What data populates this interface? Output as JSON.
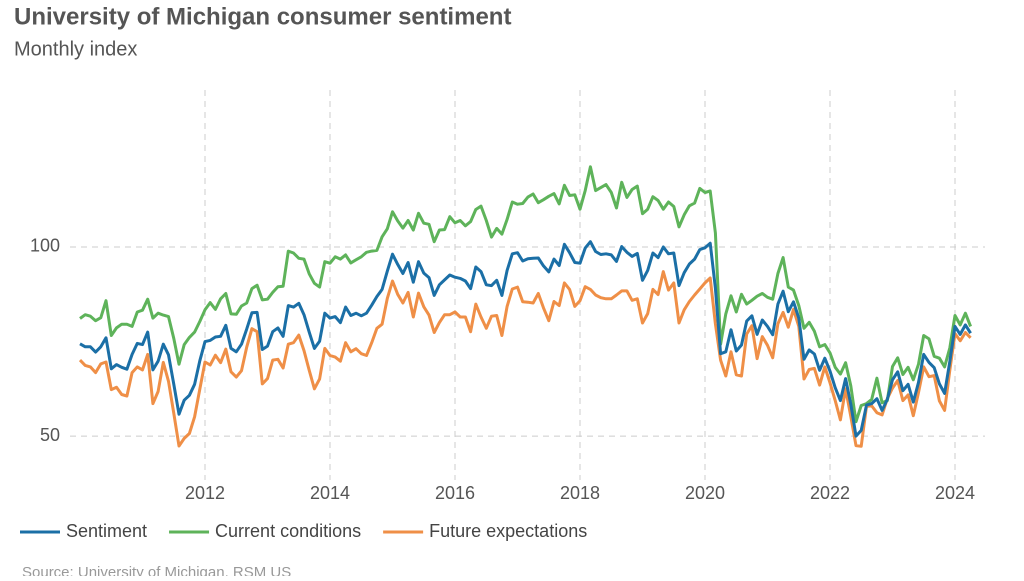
{
  "chart_data": {
    "type": "line",
    "title": "University of Michigan consumer sentiment",
    "subtitle": "Monthly index",
    "source": "Source: University of Michigan, RSM US",
    "xlim": [
      2009.84,
      2024.48
    ],
    "xticks": [
      2012,
      2014,
      2016,
      2018,
      2020,
      2022,
      2024
    ],
    "ylim": [
      38.4,
      141.5
    ],
    "yticks": [
      50,
      100
    ],
    "grid": true,
    "legend": "bottom",
    "x": [
      "2010-01",
      "2010-02",
      "2010-03",
      "2010-04",
      "2010-05",
      "2010-06",
      "2010-07",
      "2010-08",
      "2010-09",
      "2010-10",
      "2010-11",
      "2010-12",
      "2011-01",
      "2011-02",
      "2011-03",
      "2011-04",
      "2011-05",
      "2011-06",
      "2011-07",
      "2011-08",
      "2011-09",
      "2011-10",
      "2011-11",
      "2011-12",
      "2012-01",
      "2012-02",
      "2012-03",
      "2012-04",
      "2012-05",
      "2012-06",
      "2012-07",
      "2012-08",
      "2012-09",
      "2012-10",
      "2012-11",
      "2012-12",
      "2013-01",
      "2013-02",
      "2013-03",
      "2013-04",
      "2013-05",
      "2013-06",
      "2013-07",
      "2013-08",
      "2013-09",
      "2013-10",
      "2013-11",
      "2013-12",
      "2014-01",
      "2014-02",
      "2014-03",
      "2014-04",
      "2014-05",
      "2014-06",
      "2014-07",
      "2014-08",
      "2014-09",
      "2014-10",
      "2014-11",
      "2014-12",
      "2015-01",
      "2015-02",
      "2015-03",
      "2015-04",
      "2015-05",
      "2015-06",
      "2015-07",
      "2015-08",
      "2015-09",
      "2015-10",
      "2015-11",
      "2015-12",
      "2016-01",
      "2016-02",
      "2016-03",
      "2016-04",
      "2016-05",
      "2016-06",
      "2016-07",
      "2016-08",
      "2016-09",
      "2016-10",
      "2016-11",
      "2016-12",
      "2017-01",
      "2017-02",
      "2017-03",
      "2017-04",
      "2017-05",
      "2017-06",
      "2017-07",
      "2017-08",
      "2017-09",
      "2017-10",
      "2017-11",
      "2017-12",
      "2018-01",
      "2018-02",
      "2018-03",
      "2018-04",
      "2018-05",
      "2018-06",
      "2018-07",
      "2018-08",
      "2018-09",
      "2018-10",
      "2018-11",
      "2018-12",
      "2019-01",
      "2019-02",
      "2019-03",
      "2019-04",
      "2019-05",
      "2019-06",
      "2019-07",
      "2019-08",
      "2019-09",
      "2019-10",
      "2019-11",
      "2019-12",
      "2020-01",
      "2020-02",
      "2020-03",
      "2020-04",
      "2020-05",
      "2020-06",
      "2020-07",
      "2020-08",
      "2020-09",
      "2020-10",
      "2020-11",
      "2020-12",
      "2021-01",
      "2021-02",
      "2021-03",
      "2021-04",
      "2021-05",
      "2021-06",
      "2021-07",
      "2021-08",
      "2021-09",
      "2021-10",
      "2021-11",
      "2021-12",
      "2022-01",
      "2022-02",
      "2022-03",
      "2022-04",
      "2022-05",
      "2022-06",
      "2022-07",
      "2022-08",
      "2022-09",
      "2022-10",
      "2022-11",
      "2022-12",
      "2023-01",
      "2023-02",
      "2023-03",
      "2023-04",
      "2023-05",
      "2023-06",
      "2023-07",
      "2023-08",
      "2023-09",
      "2023-10",
      "2023-11",
      "2023-12",
      "2024-01",
      "2024-02",
      "2024-03",
      "2024-04"
    ],
    "series": [
      {
        "name": "Sentiment",
        "color": "#1b6fa6",
        "values": [
          74.4,
          73.6,
          73.6,
          72.2,
          73.6,
          76.0,
          67.8,
          68.9,
          68.2,
          67.7,
          71.6,
          74.5,
          74.2,
          77.5,
          67.5,
          69.8,
          74.3,
          71.5,
          63.7,
          55.8,
          59.5,
          60.8,
          63.7,
          69.9,
          75.0,
          75.3,
          76.2,
          76.4,
          79.3,
          73.2,
          72.3,
          74.3,
          78.3,
          82.6,
          82.7,
          72.9,
          73.8,
          77.6,
          78.6,
          76.4,
          84.5,
          84.1,
          85.1,
          82.1,
          77.5,
          73.2,
          75.1,
          82.5,
          81.2,
          81.6,
          80.0,
          84.1,
          81.9,
          82.5,
          81.8,
          82.5,
          84.6,
          86.9,
          88.8,
          93.6,
          98.1,
          95.4,
          93.0,
          95.9,
          90.7,
          96.1,
          93.1,
          91.9,
          87.2,
          90.0,
          91.3,
          92.6,
          92.0,
          91.7,
          91.0,
          89.0,
          94.7,
          93.5,
          90.0,
          89.8,
          91.2,
          87.2,
          93.8,
          98.2,
          98.5,
          96.3,
          96.9,
          97.0,
          97.1,
          95.0,
          93.4,
          96.8,
          95.1,
          100.7,
          98.5,
          95.9,
          95.7,
          99.7,
          101.4,
          98.8,
          98.0,
          98.2,
          97.9,
          96.2,
          100.1,
          98.6,
          97.5,
          98.3,
          91.2,
          93.8,
          98.4,
          97.2,
          100.0,
          98.2,
          98.4,
          89.8,
          93.2,
          95.5,
          96.8,
          99.3,
          99.8,
          101.0,
          89.1,
          71.8,
          72.3,
          78.1,
          72.5,
          74.1,
          80.4,
          81.8,
          76.9,
          80.7,
          79.0,
          76.8,
          84.9,
          88.3,
          82.9,
          85.5,
          81.2,
          70.3,
          72.8,
          71.7,
          67.4,
          70.6,
          67.2,
          62.8,
          59.4,
          65.2,
          58.4,
          50.0,
          51.5,
          58.2,
          58.6,
          59.9,
          56.8,
          59.7,
          64.9,
          67.0,
          62.0,
          63.7,
          59.0,
          64.2,
          71.6,
          69.5,
          68.1,
          63.8,
          61.3,
          69.7,
          79.0,
          76.9,
          79.4,
          77.2
        ]
      },
      {
        "name": "Current conditions",
        "color": "#5eb35a",
        "values": [
          81.1,
          82.1,
          81.7,
          80.5,
          81.3,
          85.8,
          76.6,
          78.6,
          79.6,
          79.6,
          79.0,
          82.8,
          83.3,
          86.2,
          81.2,
          82.5,
          82.0,
          81.6,
          75.8,
          69.0,
          74.2,
          76.1,
          77.5,
          80.3,
          83.4,
          85.3,
          83.5,
          86.3,
          87.7,
          82.3,
          82.2,
          84.4,
          85.2,
          89.0,
          89.9,
          86.0,
          86.2,
          88.0,
          89.5,
          89.6,
          98.9,
          98.4,
          97.0,
          96.8,
          92.9,
          90.4,
          89.4,
          96.1,
          95.7,
          97.4,
          96.8,
          97.9,
          95.8,
          96.6,
          97.4,
          98.6,
          98.9,
          99.1,
          102.7,
          104.8,
          109.3,
          106.9,
          105.0,
          107.0,
          104.5,
          108.9,
          106.3,
          106.0,
          101.4,
          104.5,
          104.6,
          108.0,
          106.4,
          107.0,
          105.6,
          106.7,
          109.9,
          110.8,
          107.0,
          102.6,
          104.9,
          103.4,
          107.3,
          111.9,
          111.3,
          111.5,
          113.2,
          114.0,
          111.7,
          112.5,
          113.4,
          114.1,
          111.4,
          116.3,
          113.6,
          113.8,
          110.0,
          114.9,
          121.2,
          114.9,
          115.7,
          116.5,
          114.4,
          110.3,
          117.1,
          113.1,
          115.2,
          116.1,
          108.8,
          110.0,
          113.3,
          112.3,
          110.0,
          111.9,
          110.7,
          105.3,
          108.5,
          110.9,
          111.6,
          115.5,
          114.4,
          114.8,
          103.7,
          74.3,
          82.3,
          87.1,
          82.8,
          87.5,
          84.9,
          85.9,
          87.0,
          87.7,
          86.7,
          86.2,
          93.0,
          97.2,
          89.4,
          88.6,
          84.5,
          78.5,
          80.1,
          77.7,
          73.6,
          74.2,
          72.0,
          68.2,
          66.4,
          69.4,
          63.3,
          53.8,
          58.1,
          58.6,
          59.7,
          65.3,
          58.8,
          59.4,
          68.4,
          70.7,
          66.3,
          68.2,
          64.9,
          69.0,
          76.6,
          75.7,
          71.1,
          70.6,
          68.3,
          73.3,
          81.9,
          79.4,
          82.5,
          79.0
        ]
      },
      {
        "name": "Future expectations",
        "color": "#ef8f47",
        "values": [
          70.1,
          68.7,
          68.3,
          66.8,
          69.1,
          69.6,
          62.3,
          62.9,
          61.0,
          60.6,
          66.8,
          68.3,
          67.5,
          71.6,
          58.6,
          61.8,
          69.5,
          64.5,
          56.0,
          47.4,
          49.4,
          50.7,
          55.1,
          62.4,
          69.6,
          68.8,
          71.4,
          69.4,
          73.0,
          67.0,
          65.6,
          67.3,
          73.5,
          78.4,
          77.6,
          63.8,
          65.2,
          70.1,
          70.3,
          68.0,
          74.3,
          74.7,
          76.7,
          72.6,
          67.4,
          62.5,
          65.1,
          73.2,
          71.3,
          70.9,
          69.8,
          74.7,
          72.3,
          73.1,
          71.8,
          71.3,
          74.7,
          78.5,
          79.6,
          86.4,
          91.0,
          87.5,
          85.2,
          88.0,
          81.5,
          87.8,
          84.2,
          82.0,
          77.4,
          80.0,
          82.1,
          82.1,
          82.8,
          81.5,
          81.5,
          77.6,
          84.9,
          81.5,
          78.5,
          81.7,
          81.9,
          76.6,
          84.3,
          88.9,
          89.4,
          85.5,
          85.4,
          85.2,
          87.7,
          83.9,
          80.5,
          85.6,
          84.5,
          90.5,
          88.8,
          84.3,
          85.8,
          89.5,
          88.8,
          87.3,
          86.6,
          86.3,
          86.3,
          87.3,
          88.4,
          88.4,
          85.9,
          86.3,
          79.9,
          82.4,
          88.8,
          87.4,
          93.5,
          88.6,
          90.5,
          79.9,
          83.4,
          85.6,
          87.3,
          88.9,
          90.5,
          91.8,
          79.7,
          70.1,
          65.9,
          72.3,
          66.2,
          65.9,
          77.0,
          79.2,
          70.5,
          76.3,
          74.0,
          70.7,
          79.7,
          82.7,
          78.8,
          83.5,
          79.0,
          65.1,
          67.6,
          67.9,
          63.5,
          68.3,
          64.1,
          59.4,
          54.3,
          62.5,
          55.2,
          47.5,
          47.3,
          57.9,
          58.0,
          56.2,
          55.6,
          59.9,
          62.7,
          64.7,
          59.4,
          60.9,
          55.4,
          61.5,
          68.3,
          65.7,
          66.0,
          59.3,
          56.8,
          67.4,
          77.1,
          75.2,
          77.4,
          76.0
        ]
      }
    ]
  }
}
